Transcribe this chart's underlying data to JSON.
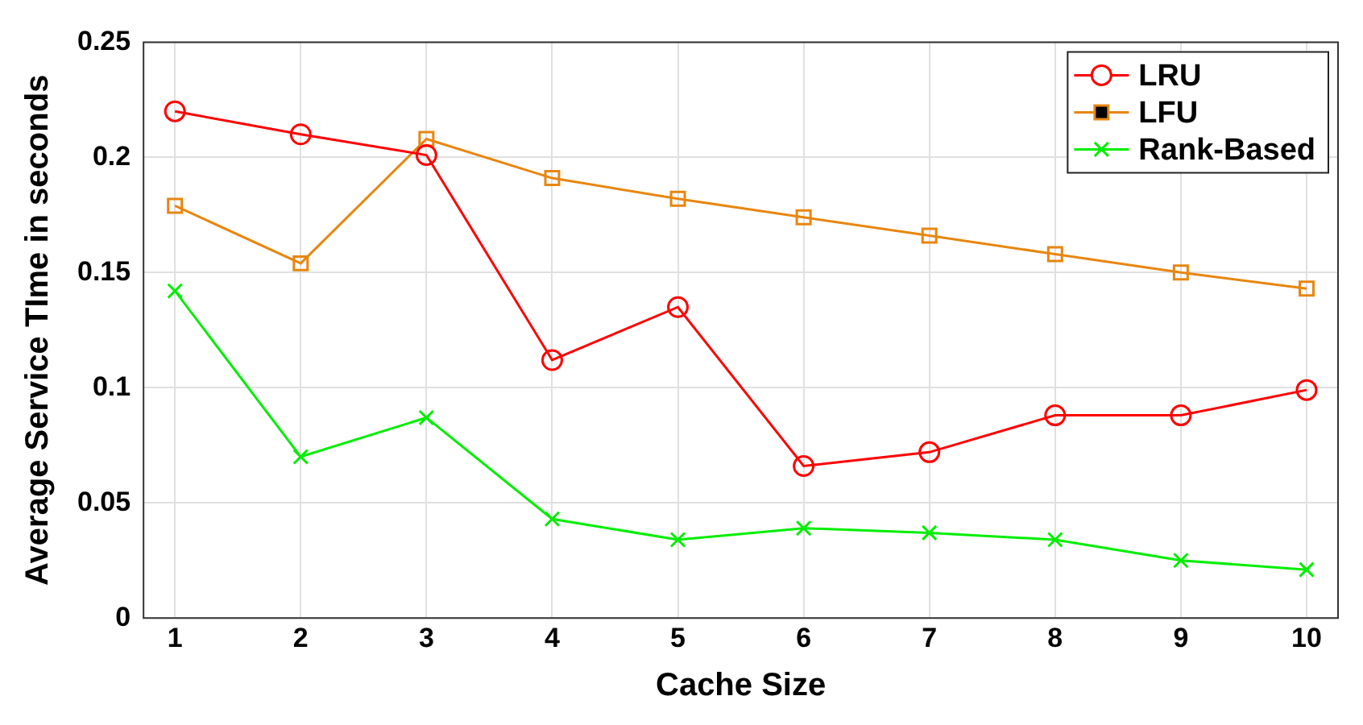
{
  "chart_data": {
    "type": "line",
    "xlabel": "Cache Size",
    "ylabel": "Average Service TIme in seconds",
    "x": [
      1,
      2,
      3,
      4,
      5,
      6,
      7,
      8,
      9,
      10
    ],
    "series": [
      {
        "name": "LRU",
        "color": "#ff0000",
        "marker": "circle",
        "values": [
          0.22,
          0.21,
          0.201,
          0.112,
          0.135,
          0.066,
          0.072,
          0.088,
          0.088,
          0.099
        ]
      },
      {
        "name": "LFU",
        "color": "#e8860f",
        "marker": "square",
        "values": [
          0.179,
          0.154,
          0.208,
          0.191,
          0.182,
          0.174,
          0.166,
          0.158,
          0.15,
          0.143
        ]
      },
      {
        "name": "Rank-Based",
        "color": "#00ee00",
        "marker": "cross",
        "values": [
          0.142,
          0.07,
          0.087,
          0.043,
          0.034,
          0.039,
          0.037,
          0.034,
          0.025,
          0.021
        ]
      }
    ],
    "xlim": [
      0.75,
      10.25
    ],
    "xticks": [
      1,
      2,
      3,
      4,
      5,
      6,
      7,
      8,
      9,
      10
    ],
    "ylim": [
      0,
      0.25
    ],
    "yticks": [
      0,
      0.05,
      0.1,
      0.15,
      0.2,
      0.25
    ],
    "grid": true,
    "legend": "top right"
  }
}
